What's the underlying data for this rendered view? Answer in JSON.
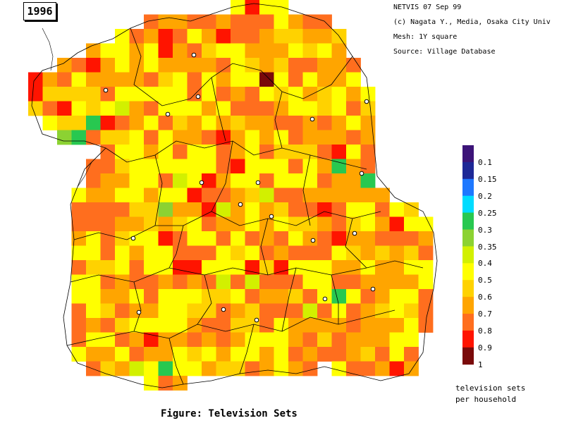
{
  "year": "1996",
  "header": {
    "netvis": "NETVIS 07 Sep 99",
    "credit": "(c) Nagata Y., Media, Osaka City Univ",
    "mesh": "Mesh:  1Y square",
    "source": "Source:  Village Database"
  },
  "legend": {
    "title_line1": "television sets",
    "title_line2": "per household",
    "items": [
      {
        "label": "0.1",
        "color": "#3c1478"
      },
      {
        "label": "0.15",
        "color": "#1e2896"
      },
      {
        "label": "0.2",
        "color": "#1e78ff"
      },
      {
        "label": "0.25",
        "color": "#00dcff"
      },
      {
        "label": "0.3",
        "color": "#28c850"
      },
      {
        "label": "0.35",
        "color": "#8cd232"
      },
      {
        "label": "0.4",
        "color": "#d2f000"
      },
      {
        "label": "0.5",
        "color": "#ffff00"
      },
      {
        "label": "0.6",
        "color": "#ffd200"
      },
      {
        "label": "0.7",
        "color": "#ffa500"
      },
      {
        "label": "0.8",
        "color": "#ff6e1e"
      },
      {
        "label": "0.9",
        "color": "#ff1400"
      },
      {
        "label": "1",
        "color": "#7a0a0a"
      }
    ]
  },
  "caption": "Figure: Television Sets"
}
